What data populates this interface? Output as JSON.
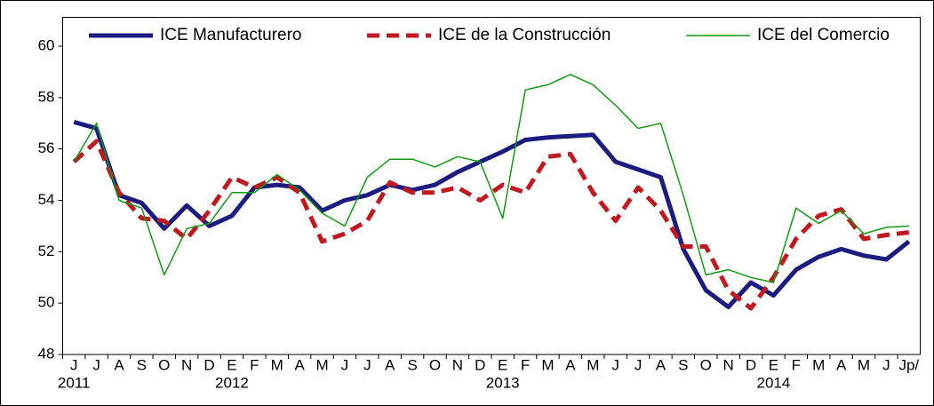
{
  "chart_data": {
    "type": "line",
    "categories": [
      "J",
      "J",
      "A",
      "S",
      "O",
      "N",
      "D",
      "E",
      "F",
      "M",
      "A",
      "M",
      "J",
      "J",
      "A",
      "S",
      "O",
      "N",
      "D",
      "E",
      "F",
      "M",
      "A",
      "M",
      "J",
      "J",
      "A",
      "S",
      "O",
      "N",
      "D",
      "E",
      "F",
      "M",
      "A",
      "M",
      "J",
      "Jp/"
    ],
    "years": [
      "2011",
      null,
      null,
      null,
      null,
      null,
      null,
      "2012",
      null,
      null,
      null,
      null,
      null,
      null,
      null,
      null,
      null,
      null,
      null,
      "2013",
      null,
      null,
      null,
      null,
      null,
      null,
      null,
      null,
      null,
      null,
      null,
      "2014",
      null,
      null,
      null,
      null,
      null,
      null
    ],
    "series": [
      {
        "name": "ICE Manufacturero",
        "color": "#1b1b80",
        "dash": false,
        "width": 5,
        "values": [
          57.05,
          56.8,
          54.2,
          53.9,
          52.9,
          53.8,
          53.0,
          53.4,
          54.5,
          54.6,
          54.5,
          53.6,
          54.0,
          54.2,
          54.6,
          54.4,
          54.6,
          55.1,
          55.5,
          55.9,
          56.35,
          56.45,
          56.5,
          56.55,
          55.5,
          55.2,
          54.9,
          52.1,
          50.5,
          49.85,
          50.8,
          50.3,
          51.3,
          51.8,
          52.1,
          51.85,
          51.7,
          52.4
        ]
      },
      {
        "name": "ICE de la Construcción",
        "color": "#c0191f",
        "dash": true,
        "width": 5,
        "values": [
          55.5,
          56.3,
          54.3,
          53.3,
          53.2,
          52.5,
          53.6,
          54.9,
          54.5,
          54.9,
          54.3,
          52.4,
          52.7,
          53.2,
          54.7,
          54.3,
          54.3,
          54.5,
          54.0,
          54.6,
          54.3,
          55.7,
          55.8,
          54.3,
          53.2,
          54.5,
          53.6,
          52.2,
          52.2,
          50.5,
          49.8,
          51.0,
          52.5,
          53.4,
          53.65,
          52.5,
          52.65,
          52.75
        ]
      },
      {
        "name": "ICE del Comercio",
        "color": "#129a12",
        "dash": false,
        "width": 1.5,
        "values": [
          55.5,
          57.0,
          54.0,
          53.7,
          51.1,
          52.9,
          53.1,
          54.3,
          54.3,
          55.0,
          54.4,
          53.5,
          53.0,
          54.9,
          55.6,
          55.6,
          55.3,
          55.7,
          55.5,
          53.3,
          58.3,
          58.5,
          58.9,
          58.5,
          57.7,
          56.8,
          57.0,
          54.2,
          51.1,
          51.3,
          51.0,
          50.8,
          53.7,
          53.1,
          53.6,
          52.7,
          52.95,
          53.0
        ]
      }
    ],
    "ylim": [
      48,
      60
    ],
    "yticks": [
      48,
      50,
      52,
      54,
      56,
      58,
      60
    ],
    "legend": "top"
  }
}
